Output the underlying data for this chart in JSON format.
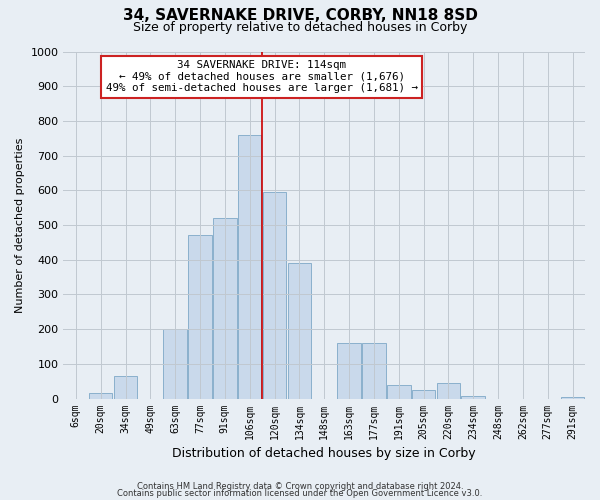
{
  "title_line1": "34, SAVERNAKE DRIVE, CORBY, NN18 8SD",
  "title_line2": "Size of property relative to detached houses in Corby",
  "xlabel": "Distribution of detached houses by size in Corby",
  "ylabel": "Number of detached properties",
  "bar_labels": [
    "6sqm",
    "20sqm",
    "34sqm",
    "49sqm",
    "63sqm",
    "77sqm",
    "91sqm",
    "106sqm",
    "120sqm",
    "134sqm",
    "148sqm",
    "163sqm",
    "177sqm",
    "191sqm",
    "205sqm",
    "220sqm",
    "234sqm",
    "248sqm",
    "262sqm",
    "277sqm",
    "291sqm"
  ],
  "bar_heights": [
    0,
    15,
    65,
    0,
    200,
    470,
    520,
    760,
    595,
    390,
    0,
    160,
    160,
    40,
    25,
    45,
    8,
    0,
    0,
    0,
    5
  ],
  "bar_color": "#c9d9eb",
  "bar_edge_color": "#8ab0cc",
  "marker_line_color": "#cc0000",
  "annotation_text_line1": "34 SAVERNAKE DRIVE: 114sqm",
  "annotation_text_line2": "← 49% of detached houses are smaller (1,676)",
  "annotation_text_line3": "49% of semi-detached houses are larger (1,681) →",
  "ylim": [
    0,
    1000
  ],
  "yticks": [
    0,
    100,
    200,
    300,
    400,
    500,
    600,
    700,
    800,
    900,
    1000
  ],
  "footer_line1": "Contains HM Land Registry data © Crown copyright and database right 2024.",
  "footer_line2": "Contains public sector information licensed under the Open Government Licence v3.0.",
  "bg_color": "#e8eef4",
  "plot_bg_color": "#e8eef4",
  "grid_color": "#c0c8d0"
}
